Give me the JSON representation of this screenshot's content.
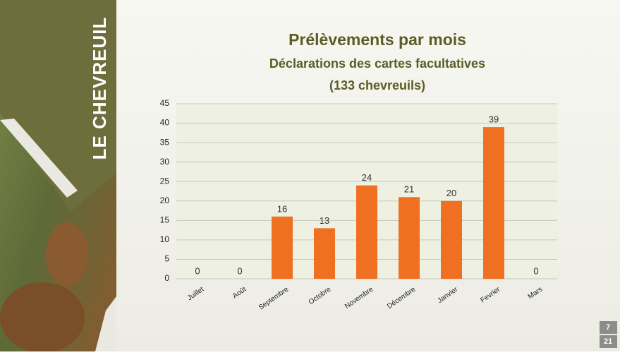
{
  "chart_data": {
    "type": "bar",
    "title": "Prélèvements par mois",
    "subtitle": [
      "Déclarations des cartes facultatives",
      "(133 chevreuils)"
    ],
    "categories": [
      "Juillet",
      "Août",
      "Septembre",
      "Octobre",
      "Novembre",
      "Décembre",
      "Janvier",
      "Fevrier",
      "Mars"
    ],
    "values": [
      0,
      0,
      16,
      13,
      24,
      21,
      20,
      39,
      0
    ],
    "color": "#f07022",
    "ylim": [
      0,
      45
    ],
    "yticks": [
      0,
      5,
      10,
      15,
      20,
      25,
      30,
      35,
      40,
      45
    ],
    "grid": true
  },
  "slide": {
    "side_title": "LE CHEVREUIL",
    "page_numbers": [
      "7",
      "21"
    ]
  }
}
